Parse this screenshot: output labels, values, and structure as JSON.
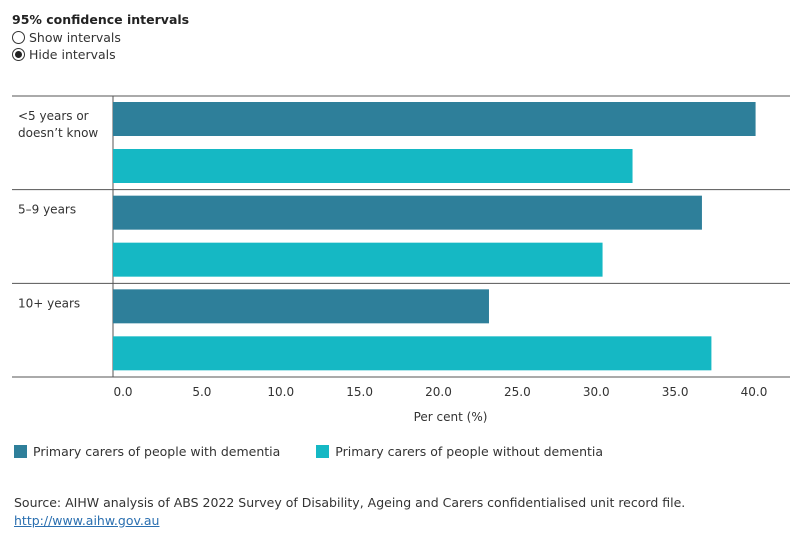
{
  "ci": {
    "title": "95% confidence intervals",
    "options": [
      "Show intervals",
      "Hide intervals"
    ],
    "selected": "Hide intervals"
  },
  "chart_data": {
    "type": "bar",
    "orientation": "horizontal",
    "categories": [
      [
        "<5 years or",
        "doesn’t know"
      ],
      [
        "5–9 years"
      ],
      [
        "10+ years"
      ]
    ],
    "series": [
      {
        "name": "Primary carers of people with dementia",
        "color": "#2e7f9a",
        "values": [
          40.1,
          36.7,
          23.2
        ]
      },
      {
        "name": "Primary carers of people without dementia",
        "color": "#15b8c4",
        "values": [
          32.3,
          30.4,
          37.3
        ]
      }
    ],
    "xlabel": "Per cent (%)",
    "xlim": [
      0,
      40
    ],
    "xticks": [
      "0.0",
      "5.0",
      "10.0",
      "15.0",
      "20.0",
      "25.0",
      "30.0",
      "35.0",
      "40.0"
    ],
    "grid": false,
    "legend": "bottom"
  },
  "source": {
    "text": "Source: AIHW analysis of ABS 2022 Survey of Disability, Ageing and Carers confidentialised unit record file.",
    "link": "http://www.aihw.gov.au"
  }
}
